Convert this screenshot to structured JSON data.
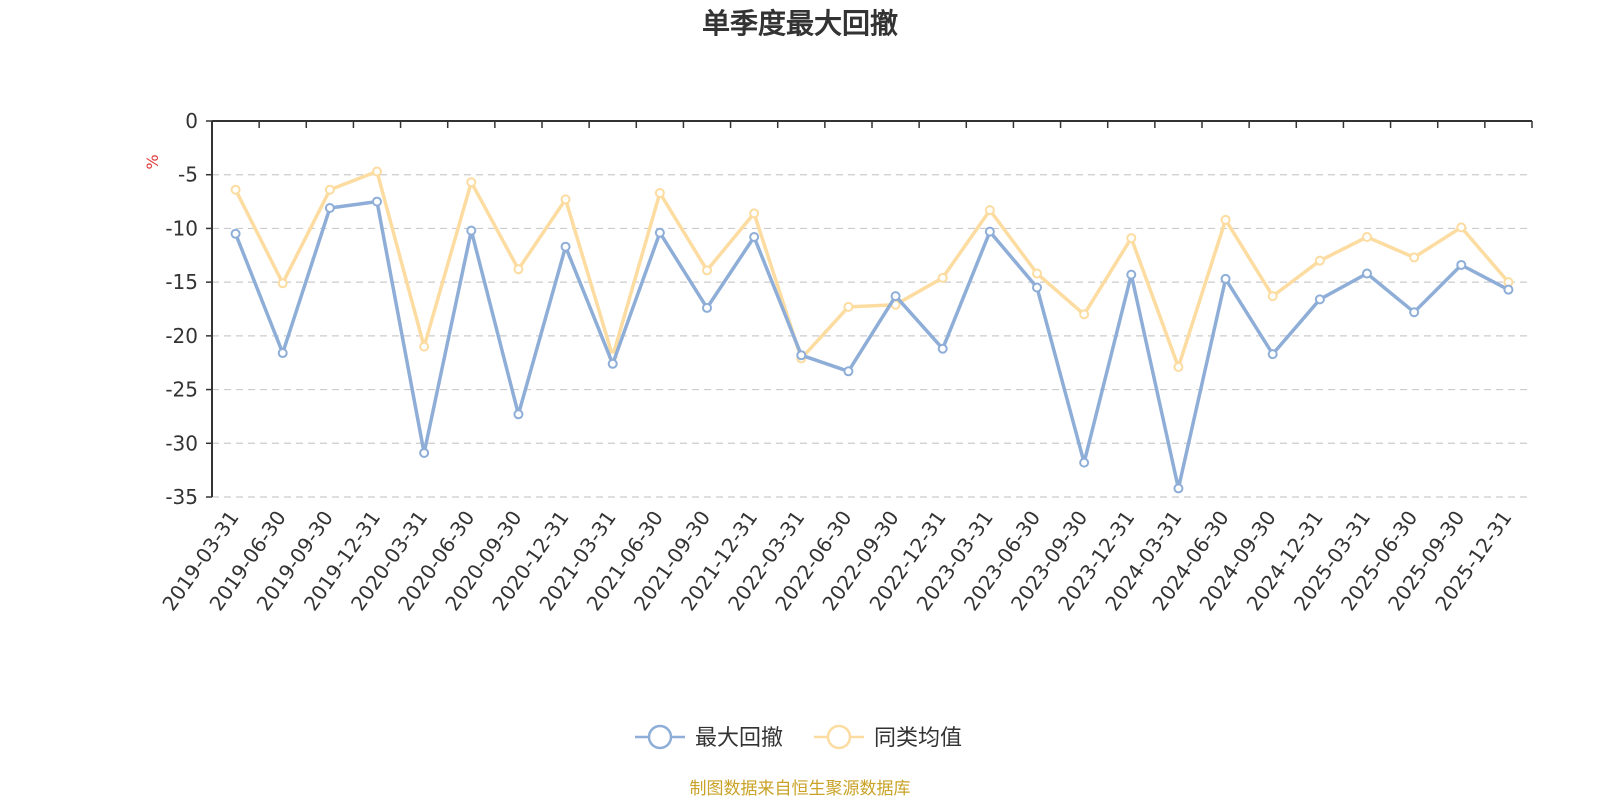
{
  "chart_data": {
    "type": "line",
    "title": "单季度最大回撤",
    "ylabel": "%",
    "ylim": [
      -35,
      0
    ],
    "yticks": [
      0,
      -5,
      -10,
      -15,
      -20,
      -25,
      -30,
      -35
    ],
    "grid": true,
    "legend_position": "bottom",
    "categories": [
      "2019-03-31",
      "2019-06-30",
      "2019-09-30",
      "2019-12-31",
      "2020-03-31",
      "2020-06-30",
      "2020-09-30",
      "2020-12-31",
      "2021-03-31",
      "2021-06-30",
      "2021-09-30",
      "2021-12-31",
      "2022-03-31",
      "2022-06-30",
      "2022-09-30",
      "2022-12-31",
      "2023-03-31",
      "2023-06-30",
      "2023-09-30",
      "2023-12-31",
      "2024-03-31",
      "2024-06-30",
      "2024-09-30",
      "2024-12-31",
      "2025-03-31",
      "2025-06-30",
      "2025-09-30",
      "2025-12-31"
    ],
    "series": [
      {
        "name": "最大回撤",
        "color": "#8eaed8",
        "values": [
          -10.5,
          -21.6,
          -8.1,
          -7.5,
          -30.9,
          -10.2,
          -27.3,
          -11.7,
          -22.6,
          -10.4,
          -17.4,
          -10.8,
          -21.8,
          -23.3,
          -16.3,
          -21.2,
          -10.3,
          -15.5,
          -31.8,
          -14.3,
          -34.2,
          -14.7,
          -21.7,
          -16.6,
          -14.2,
          -17.8,
          -13.4,
          -15.7
        ]
      },
      {
        "name": "同类均值",
        "color": "#fcdca0",
        "values": [
          -6.4,
          -15.1,
          -6.4,
          -4.7,
          -21.0,
          -5.7,
          -13.8,
          -7.3,
          -21.9,
          -6.7,
          -13.9,
          -8.6,
          -22.1,
          -17.3,
          -17.1,
          -14.6,
          -8.3,
          -14.2,
          -18.0,
          -10.9,
          -22.9,
          -9.2,
          -16.3,
          -13.0,
          -10.8,
          -12.7,
          -9.9,
          -15.0
        ]
      }
    ]
  },
  "footer": {
    "source_text": "制图数据来自恒生聚源数据库"
  },
  "colors": {
    "axis": "#333333",
    "grid": "#cccccc",
    "unit": "#e03a3a",
    "source": "#c9a227"
  }
}
